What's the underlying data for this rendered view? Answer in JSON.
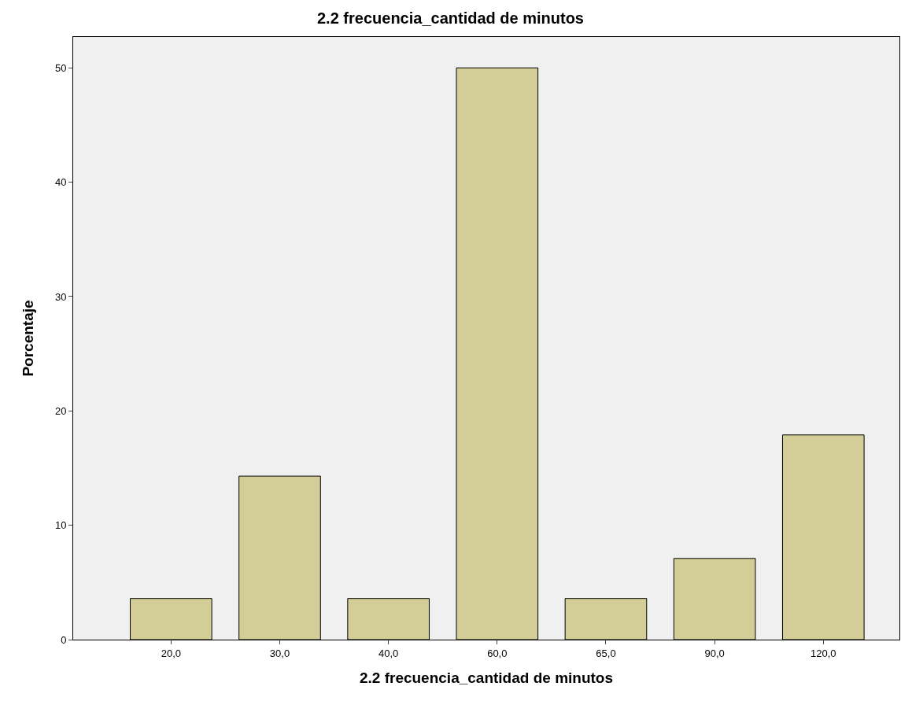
{
  "chart_data": {
    "type": "bar",
    "title": "2.2 frecuencia_cantidad de minutos",
    "xlabel": "2.2 frecuencia_cantidad de minutos",
    "ylabel": "Porcentaje",
    "categories": [
      "20,0",
      "30,0",
      "40,0",
      "60,0",
      "65,0",
      "90,0",
      "120,0"
    ],
    "values": [
      3.6,
      14.3,
      3.6,
      50.0,
      3.6,
      7.1,
      17.9
    ],
    "color": "#d3ce97",
    "ylim": [
      0,
      52.7
    ],
    "yticks": [
      0,
      10,
      20,
      30,
      40,
      50
    ],
    "grid": false,
    "legend": false
  }
}
